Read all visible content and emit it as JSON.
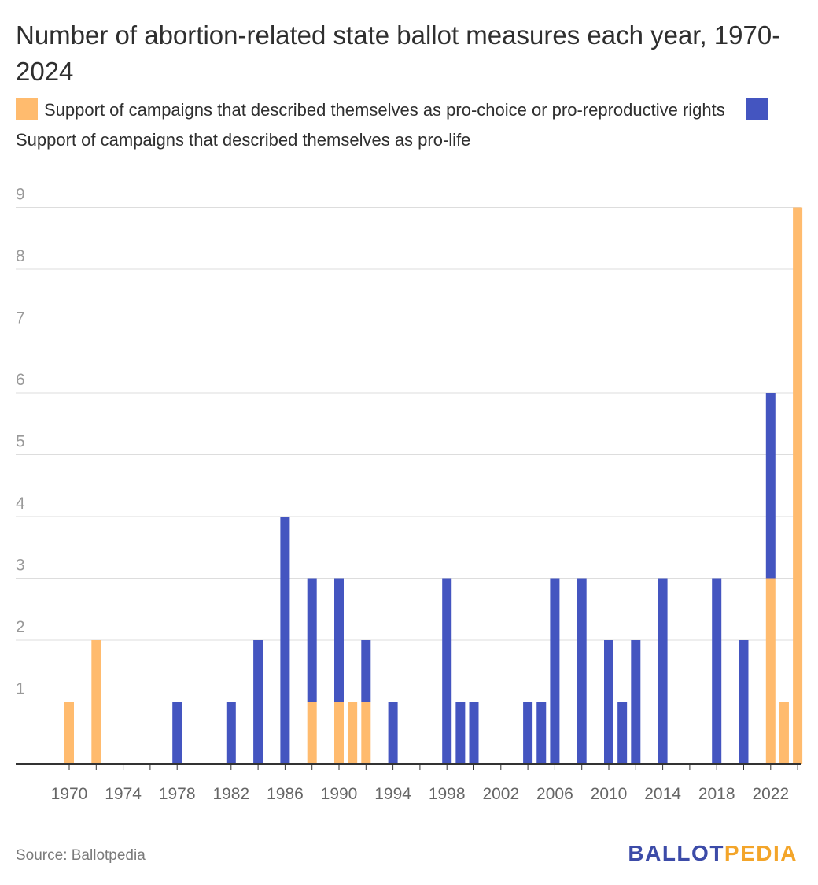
{
  "title": "Number of abortion-related state ballot measures each year, 1970-2024",
  "legend": {
    "pro_choice": "Support of campaigns that described themselves as pro-choice or pro-reproductive rights",
    "pro_life": "Support of campaigns that described themselves as pro-life"
  },
  "source": "Source: Ballotpedia",
  "logo": {
    "part1": "BALLOT",
    "part2": "PEDIA"
  },
  "colors": {
    "pro_choice": "#ffbb6e",
    "pro_life": "#4455c0",
    "grid": "#dddddd",
    "axis": "#333333",
    "tick_text": "#999999"
  },
  "chart_data": {
    "type": "bar",
    "stacked": true,
    "title": "Number of abortion-related state ballot measures each year, 1970-2024",
    "xlabel": "",
    "ylabel": "",
    "ylim": [
      0,
      9
    ],
    "yticks": [
      1,
      2,
      3,
      4,
      5,
      6,
      7,
      8,
      9
    ],
    "xticks": [
      1970,
      1974,
      1978,
      1982,
      1986,
      1990,
      1994,
      1998,
      2002,
      2006,
      2010,
      2014,
      2018,
      2022
    ],
    "categories": [
      1970,
      1971,
      1972,
      1973,
      1974,
      1975,
      1976,
      1977,
      1978,
      1979,
      1980,
      1981,
      1982,
      1983,
      1984,
      1985,
      1986,
      1987,
      1988,
      1989,
      1990,
      1991,
      1992,
      1993,
      1994,
      1995,
      1996,
      1997,
      1998,
      1999,
      2000,
      2001,
      2002,
      2003,
      2004,
      2005,
      2006,
      2007,
      2008,
      2009,
      2010,
      2011,
      2012,
      2013,
      2014,
      2015,
      2016,
      2017,
      2018,
      2019,
      2020,
      2021,
      2022,
      2023,
      2024
    ],
    "series": [
      {
        "name": "Support of campaigns that described themselves as pro-choice or pro-reproductive rights",
        "values": [
          1,
          0,
          2,
          0,
          0,
          0,
          0,
          0,
          0,
          0,
          0,
          0,
          0,
          0,
          0,
          0,
          0,
          0,
          1,
          0,
          1,
          1,
          1,
          0,
          0,
          0,
          0,
          0,
          0,
          0,
          0,
          0,
          0,
          0,
          0,
          0,
          0,
          0,
          0,
          0,
          0,
          0,
          0,
          0,
          0,
          0,
          0,
          0,
          0,
          0,
          0,
          0,
          3,
          1,
          9
        ]
      },
      {
        "name": "Support of campaigns that described themselves as pro-life",
        "values": [
          0,
          0,
          0,
          0,
          0,
          0,
          0,
          0,
          1,
          0,
          0,
          0,
          1,
          0,
          2,
          0,
          4,
          0,
          2,
          0,
          2,
          0,
          1,
          0,
          1,
          0,
          0,
          0,
          3,
          1,
          1,
          0,
          0,
          0,
          1,
          1,
          3,
          0,
          3,
          0,
          2,
          1,
          2,
          0,
          3,
          0,
          0,
          0,
          3,
          0,
          2,
          0,
          3,
          0,
          0
        ]
      }
    ],
    "grid": true,
    "legend_position": "top"
  }
}
